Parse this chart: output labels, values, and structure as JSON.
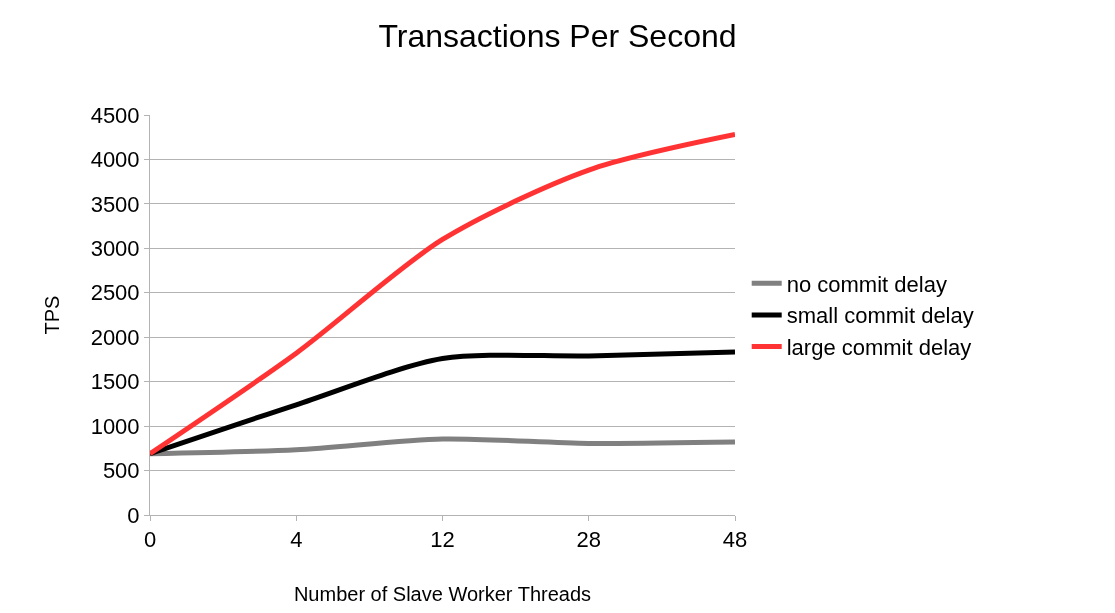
{
  "chart_data": {
    "type": "line",
    "title": "Transactions Per Second",
    "xlabel": "Number of Slave Worker Threads",
    "ylabel": "TPS",
    "categories": [
      "0",
      "4",
      "12",
      "28",
      "48"
    ],
    "series": [
      {
        "name": "no commit delay",
        "color": "#808080",
        "values": [
          690,
          735,
          855,
          805,
          820
        ]
      },
      {
        "name": "small commit delay",
        "color": "#000000",
        "values": [
          690,
          1240,
          1760,
          1790,
          1835
        ]
      },
      {
        "name": "large commit delay",
        "color": "#ff3333",
        "values": [
          690,
          1820,
          3100,
          3880,
          4280
        ]
      }
    ],
    "ylim": [
      0,
      4500
    ],
    "yticks": [
      0,
      500,
      1000,
      1500,
      2000,
      2500,
      3000,
      3500,
      4000,
      4500
    ],
    "grid": "y",
    "legend": "right",
    "marker": "none",
    "line_style": "solid"
  }
}
